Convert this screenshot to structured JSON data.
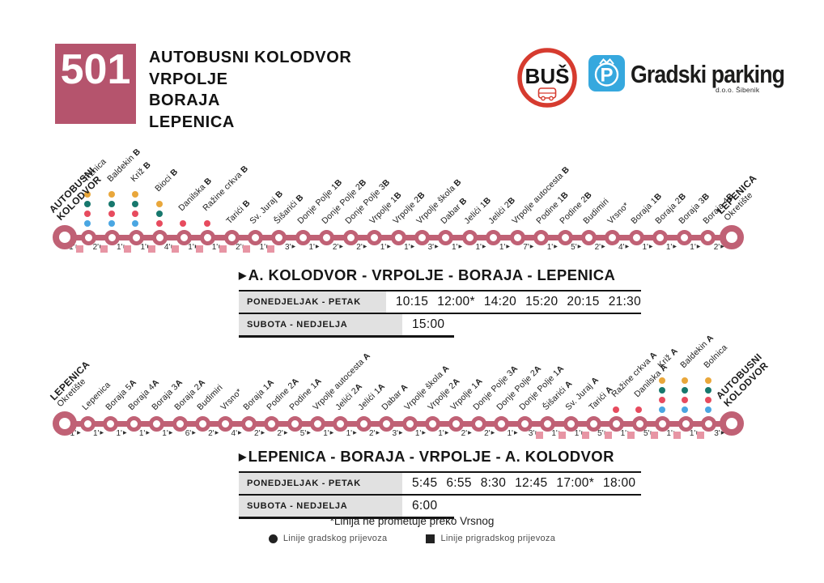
{
  "colors": {
    "accent": "#b5546d",
    "line": "#c06175",
    "square": "#e795a4",
    "bus_red": "#d63b2f",
    "parking_blue": "#36a8de",
    "yellow": "#e9a73b",
    "teal": "#17786d",
    "red": "#e74b5e",
    "blue": "#4aa6e2"
  },
  "header": {
    "route_number": "501",
    "route_title_lines": [
      "AUTOBUSNI KOLODVOR",
      "VRPOLJE",
      "BORAJA",
      "LEPENICA"
    ]
  },
  "logos": {
    "bus_text": "BUŠ",
    "parking_name": "Gradski parking",
    "parking_sub": "d.o.o. Šibenik",
    "parking_p": "P"
  },
  "routes": [
    {
      "id": "outbound",
      "stops": [
        {
          "big": "AUTOBUSNI",
          "big2": "KOLODVOR",
          "terminal": true
        },
        {
          "n": "Tržnica",
          "t": "1",
          "sq": true,
          "dots": [
            "yellow",
            "teal",
            "red",
            "blue"
          ]
        },
        {
          "n": "Baldekin ",
          "s": "B",
          "t": "2",
          "sq": true,
          "dots": [
            "yellow",
            "teal",
            "red",
            "blue"
          ]
        },
        {
          "n": "Križ ",
          "s": "B",
          "t": "1",
          "sq": true,
          "dots": [
            "yellow",
            "teal",
            "red",
            "blue"
          ]
        },
        {
          "n": "Bioci ",
          "s": "B",
          "t": "1",
          "sq": true,
          "dots": [
            "yellow",
            "teal",
            "red"
          ]
        },
        {
          "n": "Danilska ",
          "s": "B",
          "t": "4",
          "sq": true,
          "dots": [
            "red"
          ]
        },
        {
          "n": "Ražine crkva ",
          "s": "B",
          "t": "1",
          "sq": true,
          "dots": [
            "red"
          ]
        },
        {
          "n": "Tarići ",
          "s": "B",
          "t": "1",
          "sq": true
        },
        {
          "n": "Sv. Juraj ",
          "s": "B",
          "t": "2",
          "sq": true
        },
        {
          "n": "Šišarići ",
          "s": "B",
          "t": "1",
          "sq": true
        },
        {
          "n": "Donje Polje 1",
          "s": "B",
          "t": "3"
        },
        {
          "n": "Donje Polje 2",
          "s": "B",
          "t": "1"
        },
        {
          "n": "Donje Polje 3",
          "s": "B",
          "t": "2"
        },
        {
          "n": "Vrpolje 1",
          "s": "B",
          "t": "2"
        },
        {
          "n": "Vrpolje 2",
          "s": "B",
          "t": "1"
        },
        {
          "n": "Vrpolje škola ",
          "s": "B",
          "t": "1"
        },
        {
          "n": "Dabar ",
          "s": "B",
          "t": "3"
        },
        {
          "n": "Jelići 1",
          "s": "B",
          "t": "1"
        },
        {
          "n": "Jelići 2",
          "s": "B",
          "t": "1"
        },
        {
          "n": "Vrpolje autocesta ",
          "s": "B",
          "t": "1"
        },
        {
          "n": "Podine 1",
          "s": "B",
          "t": "7"
        },
        {
          "n": "Podine 2",
          "s": "B",
          "t": "1"
        },
        {
          "n": "Budimiri",
          "t": "5"
        },
        {
          "n": "Vrsno*",
          "t": "2"
        },
        {
          "n": "Boraja 1",
          "s": "B",
          "t": "4"
        },
        {
          "n": "Boraja 2",
          "s": "B",
          "t": "1"
        },
        {
          "n": "Boraja 3",
          "s": "B",
          "t": "1"
        },
        {
          "n": "Boraja 4",
          "s": "B",
          "t": "1"
        },
        {
          "big": "LEPENICA",
          "sub": "Okretište",
          "terminal": true,
          "t": "2"
        }
      ]
    },
    {
      "id": "return",
      "stops": [
        {
          "big": "LEPENICA",
          "sub": "Okretište",
          "terminal": true
        },
        {
          "n": "Lepenica",
          "t": "1"
        },
        {
          "n": "Boraja 5",
          "s": "A",
          "t": "1"
        },
        {
          "n": "Boraja 4",
          "s": "A",
          "t": "1"
        },
        {
          "n": "Boraja 3",
          "s": "A",
          "t": "1"
        },
        {
          "n": "Boraja 2",
          "s": "A",
          "t": "1"
        },
        {
          "n": "Budimiri",
          "t": "6"
        },
        {
          "n": "Vrsno*",
          "t": "2"
        },
        {
          "n": "Boraja 1",
          "s": "A",
          "t": "4"
        },
        {
          "n": "Podine 2",
          "s": "A",
          "t": "2"
        },
        {
          "n": "Podine 1",
          "s": "A",
          "t": "2"
        },
        {
          "n": "Vrpolje autocesta ",
          "s": "A",
          "t": "5"
        },
        {
          "n": "Jelići 2",
          "s": "A",
          "t": "1"
        },
        {
          "n": "Jelići 1",
          "s": "A",
          "t": "1"
        },
        {
          "n": "Dabar ",
          "s": "A",
          "t": "2"
        },
        {
          "n": "Vrpolje škola ",
          "s": "A",
          "t": "3"
        },
        {
          "n": "Vrpolje 2",
          "s": "A",
          "t": "1"
        },
        {
          "n": "Vrpolje 1",
          "s": "A",
          "t": "1"
        },
        {
          "n": "Donje Polje 3",
          "s": "A",
          "t": "2"
        },
        {
          "n": "Donje Polje 2",
          "s": "A",
          "t": "2"
        },
        {
          "n": "Donje Polje 1",
          "s": "A",
          "t": "1"
        },
        {
          "n": "Šišarići ",
          "s": "A",
          "t": "3",
          "sq": true
        },
        {
          "n": "Sv. Juraj ",
          "s": "A",
          "t": "1",
          "sq": true
        },
        {
          "n": "Tarići ",
          "s": "A",
          "t": "1",
          "sq": true
        },
        {
          "n": "Ražine crkva ",
          "s": "A",
          "t": "5",
          "sq": true,
          "dots": [
            "red"
          ]
        },
        {
          "n": "Danilska ",
          "s": "A",
          "t": "1",
          "sq": true,
          "dots": [
            "red"
          ]
        },
        {
          "n": "Križ ",
          "s": "A",
          "t": "5",
          "sq": true,
          "dots": [
            "yellow",
            "teal",
            "red",
            "blue"
          ]
        },
        {
          "n": "Baldekin ",
          "s": "A",
          "t": "1",
          "sq": true,
          "dots": [
            "yellow",
            "teal",
            "red",
            "blue"
          ]
        },
        {
          "n": "Bolnica",
          "t": "1",
          "sq": true,
          "dots": [
            "yellow",
            "teal",
            "red",
            "blue"
          ]
        },
        {
          "big": "AUTOBUSNI",
          "big2": "KOLODVOR",
          "terminal": true,
          "t": "3"
        }
      ]
    }
  ],
  "timetables": [
    {
      "marker": "▶",
      "title": "A. KOLODVOR - VRPOLJE - BORAJA - LEPENICA",
      "rows": [
        {
          "label": "PONEDJELJAK - PETAK",
          "times": [
            "10:15",
            "12:00*",
            "14:20",
            "15:20",
            "20:15",
            "21:30"
          ]
        },
        {
          "label": "SUBOTA - NEDJELJA",
          "times": [
            "15:00"
          ]
        }
      ]
    },
    {
      "marker": "▶",
      "title": "LEPENICA - BORAJA - VRPOLJE - A. KOLODVOR",
      "rows": [
        {
          "label": "PONEDJELJAK - PETAK",
          "times": [
            "5:45",
            "6:55",
            "8:30",
            "12:45",
            "17:00*",
            "18:00"
          ]
        },
        {
          "label": "SUBOTA - NEDJELJA",
          "times": [
            "6:00"
          ]
        }
      ]
    }
  ],
  "footnote": "*Linija ne prometuje preko Vrsnog",
  "legend": [
    {
      "symbol": "circle",
      "label": "Linije gradskog prijevoza"
    },
    {
      "symbol": "square",
      "label": "Linije prigradskog prijevoza"
    }
  ]
}
